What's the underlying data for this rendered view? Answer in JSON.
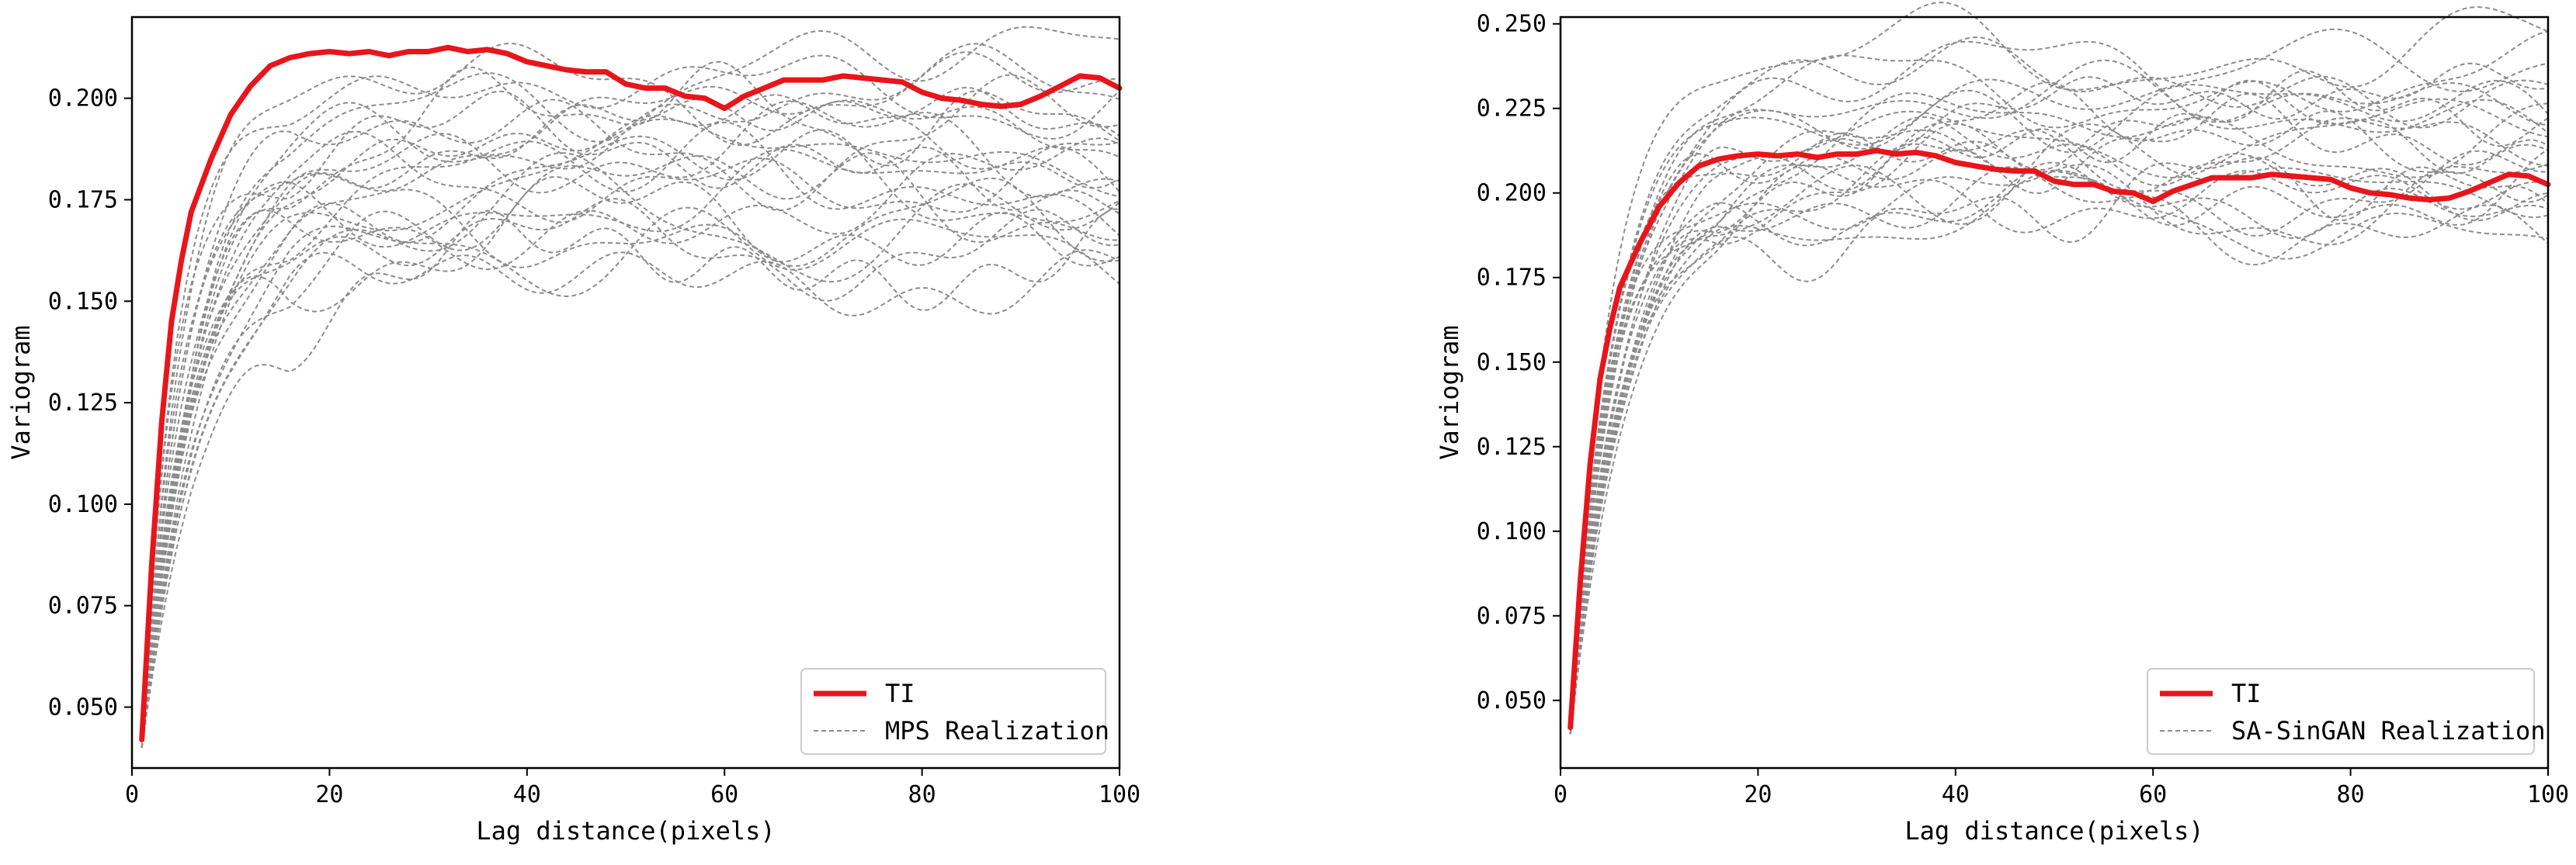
{
  "chart_data": [
    {
      "type": "line",
      "title": "",
      "xlabel": "Lag distance(pixels)",
      "ylabel": "Variogram",
      "xlim": [
        0,
        100
      ],
      "ylim": [
        0.035,
        0.22
      ],
      "xticks": [
        0,
        20,
        40,
        60,
        80,
        100
      ],
      "xtick_labels": [
        "0",
        "20",
        "40",
        "60",
        "80",
        "100"
      ],
      "yticks": [
        0.05,
        0.075,
        0.1,
        0.125,
        0.15,
        0.175,
        0.2
      ],
      "ytick_labels": [
        "0.050",
        "0.075",
        "0.100",
        "0.125",
        "0.150",
        "0.175",
        "0.200"
      ],
      "legend_position": "lower-right",
      "legend": [
        "TI",
        "MPS Realization"
      ],
      "ti_series": {
        "name": "TI",
        "color": "#e8151b",
        "x": [
          1,
          2,
          3,
          4,
          5,
          6,
          8,
          10,
          12,
          14,
          16,
          18,
          20,
          22,
          24,
          26,
          28,
          30,
          32,
          34,
          36,
          38,
          40,
          42,
          44,
          46,
          48,
          50,
          52,
          54,
          56,
          58,
          60,
          62,
          64,
          66,
          68,
          70,
          72,
          74,
          76,
          78,
          80,
          82,
          84,
          86,
          88,
          90,
          92,
          94,
          96,
          98,
          100
        ],
        "y": [
          0.042,
          0.085,
          0.12,
          0.145,
          0.16,
          0.172,
          0.185,
          0.196,
          0.203,
          0.208,
          0.21,
          0.211,
          0.2115,
          0.211,
          0.2115,
          0.2105,
          0.2115,
          0.2115,
          0.2125,
          0.2115,
          0.212,
          0.211,
          0.209,
          0.208,
          0.207,
          0.2065,
          0.2065,
          0.2035,
          0.2025,
          0.2025,
          0.2005,
          0.2,
          0.1975,
          0.2005,
          0.2025,
          0.2045,
          0.2045,
          0.2045,
          0.2055,
          0.205,
          0.2045,
          0.204,
          0.2015,
          0.2,
          0.1995,
          0.1985,
          0.198,
          0.1985,
          0.2005,
          0.203,
          0.2055,
          0.205,
          0.2025
        ]
      },
      "realizations": {
        "name": "MPS Realization",
        "color": "#8c8c8c",
        "count": 25,
        "x_range": [
          1,
          100
        ],
        "plateau_range": [
          0.158,
          0.205
        ]
      }
    },
    {
      "type": "line",
      "title": "",
      "xlabel": "Lag distance(pixels)",
      "ylabel": "Variogram",
      "xlim": [
        0,
        100
      ],
      "ylim": [
        0.03,
        0.252
      ],
      "xticks": [
        0,
        20,
        40,
        60,
        80,
        100
      ],
      "xtick_labels": [
        "0",
        "20",
        "40",
        "60",
        "80",
        "100"
      ],
      "yticks": [
        0.05,
        0.075,
        0.1,
        0.125,
        0.15,
        0.175,
        0.2,
        0.225,
        0.25
      ],
      "ytick_labels": [
        "0.050",
        "0.075",
        "0.100",
        "0.125",
        "0.150",
        "0.175",
        "0.200",
        "0.225",
        "0.250"
      ],
      "legend_position": "lower-right",
      "legend": [
        "TI",
        "SA-SinGAN Realization"
      ],
      "ti_series": {
        "name": "TI",
        "color": "#e8151b",
        "x": [
          1,
          2,
          3,
          4,
          5,
          6,
          8,
          10,
          12,
          14,
          16,
          18,
          20,
          22,
          24,
          26,
          28,
          30,
          32,
          34,
          36,
          38,
          40,
          42,
          44,
          46,
          48,
          50,
          52,
          54,
          56,
          58,
          60,
          62,
          64,
          66,
          68,
          70,
          72,
          74,
          76,
          78,
          80,
          82,
          84,
          86,
          88,
          90,
          92,
          94,
          96,
          98,
          100
        ],
        "y": [
          0.042,
          0.085,
          0.12,
          0.145,
          0.16,
          0.172,
          0.185,
          0.196,
          0.203,
          0.208,
          0.21,
          0.211,
          0.2115,
          0.211,
          0.2115,
          0.2105,
          0.2115,
          0.2115,
          0.2125,
          0.2115,
          0.212,
          0.211,
          0.209,
          0.208,
          0.207,
          0.2065,
          0.2065,
          0.2035,
          0.2025,
          0.2025,
          0.2005,
          0.2,
          0.1975,
          0.2005,
          0.2025,
          0.2045,
          0.2045,
          0.2045,
          0.2055,
          0.205,
          0.2045,
          0.204,
          0.2015,
          0.2,
          0.1995,
          0.1985,
          0.198,
          0.1985,
          0.2005,
          0.203,
          0.2055,
          0.205,
          0.2025
        ]
      },
      "realizations": {
        "name": "SA-SinGAN Realization",
        "color": "#8c8c8c",
        "count": 25,
        "x_range": [
          1,
          100
        ],
        "plateau_range": [
          0.188,
          0.238
        ]
      }
    }
  ]
}
